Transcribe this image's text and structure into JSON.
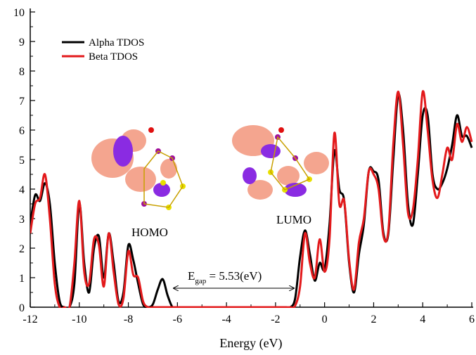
{
  "chart_data": {
    "type": "line",
    "x_label": "Energy (eV)",
    "x": [
      -12,
      -11.8,
      -11.6,
      -11.4,
      -11.2,
      -11,
      -10.8,
      -10.6,
      -10.4,
      -10.2,
      -10,
      -9.8,
      -9.6,
      -9.4,
      -9.2,
      -9,
      -8.8,
      -8.6,
      -8.4,
      -8.2,
      -8,
      -7.8,
      -7.6,
      -7.4,
      -7.2,
      -7,
      -6.8,
      -6.6,
      -6.4,
      -6.2,
      -6,
      -5.8,
      -5.6,
      -5.4,
      -5.2,
      -5,
      -4.8,
      -4.6,
      -4.4,
      -4.2,
      -4,
      -3.8,
      -3.6,
      -3.4,
      -3.2,
      -3,
      -2.8,
      -2.6,
      -2.4,
      -2.2,
      -2,
      -1.8,
      -1.6,
      -1.4,
      -1.2,
      -1,
      -0.8,
      -0.6,
      -0.4,
      -0.2,
      0,
      0.2,
      0.4,
      0.6,
      0.8,
      1,
      1.2,
      1.4,
      1.6,
      1.8,
      2,
      2.2,
      2.4,
      2.6,
      2.8,
      3,
      3.2,
      3.4,
      3.6,
      3.8,
      4,
      4.2,
      4.4,
      4.6,
      4.8,
      5,
      5.2,
      5.4,
      5.6,
      5.8,
      6
    ],
    "series": [
      {
        "name": "Alpha TDOS",
        "color": "#000000",
        "values": [
          2.8,
          3.8,
          3.6,
          4.2,
          3.5,
          1.5,
          0.2,
          0,
          0,
          0.8,
          3.5,
          1.5,
          0.5,
          2.0,
          2.4,
          1.0,
          2.5,
          1.5,
          0.2,
          0.5,
          2.1,
          1.6,
          0.8,
          0.1,
          0,
          0.1,
          0.6,
          0.95,
          0.4,
          0,
          0,
          0,
          0,
          0,
          0,
          0,
          0,
          0,
          0,
          0,
          0,
          0,
          0,
          0,
          0,
          0,
          0,
          0,
          0,
          0,
          0,
          0,
          0,
          0,
          0.3,
          1.7,
          2.6,
          1.8,
          0.9,
          1.5,
          1.3,
          2.8,
          5.3,
          4.0,
          3.6,
          1.5,
          0.5,
          1.8,
          2.8,
          4.6,
          4.6,
          4.3,
          2.5,
          2.5,
          5.0,
          7.2,
          6.0,
          3.5,
          2.8,
          4.5,
          6.5,
          6.5,
          4.5,
          4.0,
          4.2,
          4.7,
          5.5,
          6.5,
          5.8,
          5.8,
          5.4
        ]
      },
      {
        "name": "Beta TDOS",
        "color": "#e31a1c",
        "values": [
          2.5,
          3.5,
          3.7,
          4.5,
          3.0,
          0.8,
          0,
          0,
          0,
          1.5,
          3.6,
          1.2,
          0.8,
          2.3,
          2.1,
          0.7,
          2.5,
          1.2,
          0.1,
          0.3,
          1.9,
          1.1,
          1.0,
          0.2,
          0,
          0,
          0,
          0,
          0,
          0,
          0,
          0,
          0,
          0,
          0,
          0,
          0,
          0,
          0,
          0,
          0,
          0,
          0,
          0,
          0,
          0,
          0,
          0,
          0,
          0,
          0,
          0,
          0,
          0,
          0.05,
          0.7,
          2.5,
          1.5,
          1.0,
          2.3,
          1.2,
          2.3,
          5.9,
          3.5,
          3.6,
          1.6,
          0.6,
          2.2,
          3.0,
          4.6,
          4.5,
          4.0,
          2.4,
          2.6,
          5.5,
          7.3,
          5.5,
          3.2,
          3.3,
          5.0,
          7.3,
          6.0,
          4.3,
          3.7,
          4.5,
          5.4,
          5.0,
          6.2,
          5.6,
          6.1,
          5.6
        ]
      }
    ],
    "xlim": [
      -12,
      6
    ],
    "xticks": [
      -12,
      -10,
      -8,
      -6,
      -4,
      -2,
      0,
      2,
      4,
      6
    ],
    "ylim": [
      0,
      10
    ],
    "yticks": [
      0,
      1,
      2,
      3,
      4,
      5,
      6,
      7,
      8,
      9,
      10
    ],
    "legend": "upper left",
    "annotations": {
      "homo": "HOMO",
      "lumo": "LUMO",
      "gap": {
        "main": "E",
        "sub": "gap",
        "rest": " = 5.53(eV)"
      }
    }
  }
}
